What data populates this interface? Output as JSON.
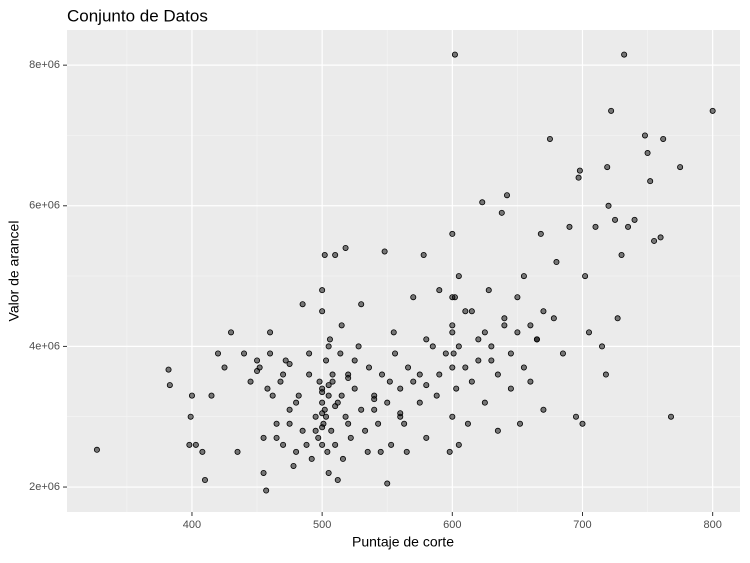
{
  "chart_data": {
    "type": "scatter",
    "title": "Conjunto de Datos",
    "x_label": "Puntaje de corte",
    "y_label": "Valor de arancel",
    "xlim": [
      304,
      821
    ],
    "ylim": [
      1645000,
      8500000
    ],
    "xticks": [
      400,
      500,
      600,
      700,
      800
    ],
    "yticks": [
      {
        "value": 2000000,
        "label": "2e+06"
      },
      {
        "value": 4000000,
        "label": "4e+06"
      },
      {
        "value": 6000000,
        "label": "6e+06"
      },
      {
        "value": 8000000,
        "label": "8e+06"
      }
    ],
    "grid": true,
    "color": "#000000",
    "x": [
      327,
      382,
      383,
      398,
      399,
      400,
      403,
      408,
      410,
      415,
      420,
      425,
      430,
      435,
      440,
      445,
      450,
      455,
      457,
      460,
      462,
      465,
      470,
      475,
      478,
      480,
      485,
      488,
      490,
      495,
      498,
      500,
      500,
      500,
      500,
      502,
      503,
      505,
      505,
      508,
      510,
      512,
      515,
      515,
      518,
      520,
      525,
      530,
      535,
      540,
      545,
      548,
      550,
      552,
      555,
      560,
      565,
      570,
      575,
      578,
      580,
      585,
      588,
      590,
      595,
      598,
      600,
      600,
      600,
      600,
      600,
      602,
      605,
      605,
      610,
      612,
      615,
      620,
      623,
      625,
      628,
      630,
      635,
      638,
      640,
      642,
      645,
      650,
      652,
      655,
      660,
      665,
      668,
      670,
      675,
      678,
      680,
      685,
      690,
      695,
      697,
      698,
      700,
      702,
      705,
      710,
      715,
      718,
      719,
      720,
      722,
      725,
      727,
      730,
      732,
      735,
      740,
      748,
      750,
      752,
      755,
      760,
      762,
      768,
      775,
      800,
      452,
      455,
      458,
      460,
      465,
      468,
      470,
      472,
      475,
      480,
      482,
      485,
      490,
      492,
      495,
      497,
      500,
      501,
      502,
      503,
      504,
      505,
      506,
      507,
      508,
      510,
      512,
      514,
      516,
      518,
      520,
      522,
      525,
      528,
      530,
      533,
      536,
      540,
      543,
      546,
      550,
      553,
      556,
      560,
      563,
      566,
      570,
      575,
      580,
      590,
      600,
      601,
      602,
      603,
      605,
      610,
      615,
      620,
      625,
      630,
      635,
      640,
      645,
      650,
      655,
      660,
      665,
      670,
      450,
      475,
      500,
      500,
      500,
      505,
      510,
      520,
      540,
      560,
      580
    ],
    "y": [
      2530000,
      3670000,
      3450000,
      2600000,
      3000000,
      3300000,
      2600000,
      2500000,
      2100000,
      3300000,
      3900000,
      3700000,
      4200000,
      2500000,
      3900000,
      3500000,
      3800000,
      2200000,
      1950000,
      4200000,
      3300000,
      2700000,
      3600000,
      2900000,
      2300000,
      3200000,
      4600000,
      2600000,
      3900000,
      2800000,
      3500000,
      4800000,
      4500000,
      3200000,
      2600000,
      5300000,
      3000000,
      2200000,
      4000000,
      3600000,
      5300000,
      2100000,
      4300000,
      3300000,
      5400000,
      2900000,
      3800000,
      4600000,
      2500000,
      3100000,
      2500000,
      5350000,
      2050000,
      3500000,
      4200000,
      3000000,
      2500000,
      4700000,
      3600000,
      5300000,
      2700000,
      4000000,
      3300000,
      4800000,
      3900000,
      2500000,
      5600000,
      4700000,
      4200000,
      3700000,
      3000000,
      8150000,
      2600000,
      5000000,
      4500000,
      2900000,
      3500000,
      4100000,
      6050000,
      3200000,
      4800000,
      3800000,
      2800000,
      5900000,
      4300000,
      6150000,
      3400000,
      4700000,
      2900000,
      5000000,
      3500000,
      4100000,
      5600000,
      3100000,
      6950000,
      4400000,
      5200000,
      3900000,
      5700000,
      3000000,
      6400000,
      6500000,
      2900000,
      5000000,
      4200000,
      5700000,
      4000000,
      3600000,
      6550000,
      6000000,
      7350000,
      5800000,
      4400000,
      5300000,
      8150000,
      5700000,
      5800000,
      7000000,
      6750000,
      6350000,
      5500000,
      5550000,
      6950000,
      3000000,
      6550000,
      7350000,
      3700000,
      2700000,
      3400000,
      3900000,
      2900000,
      3500000,
      2600000,
      3800000,
      3100000,
      2500000,
      3300000,
      2800000,
      3600000,
      2400000,
      3000000,
      2700000,
      3400000,
      2900000,
      3100000,
      3800000,
      2500000,
      3300000,
      4100000,
      2800000,
      3500000,
      2600000,
      3200000,
      3900000,
      2400000,
      3000000,
      3600000,
      2700000,
      3400000,
      4000000,
      3100000,
      2800000,
      3700000,
      3300000,
      2900000,
      3600000,
      3200000,
      2600000,
      3900000,
      3400000,
      2900000,
      3700000,
      3500000,
      3200000,
      4100000,
      3600000,
      4300000,
      3900000,
      4700000,
      3400000,
      4000000,
      3700000,
      4500000,
      3800000,
      4200000,
      4000000,
      3600000,
      4400000,
      3900000,
      4200000,
      3700000,
      4300000,
      4100000,
      4500000,
      3650000,
      3750000,
      3050000,
      3350000,
      2850000,
      3450000,
      3150000,
      3550000,
      3250000,
      3050000,
      3450000
    ]
  }
}
